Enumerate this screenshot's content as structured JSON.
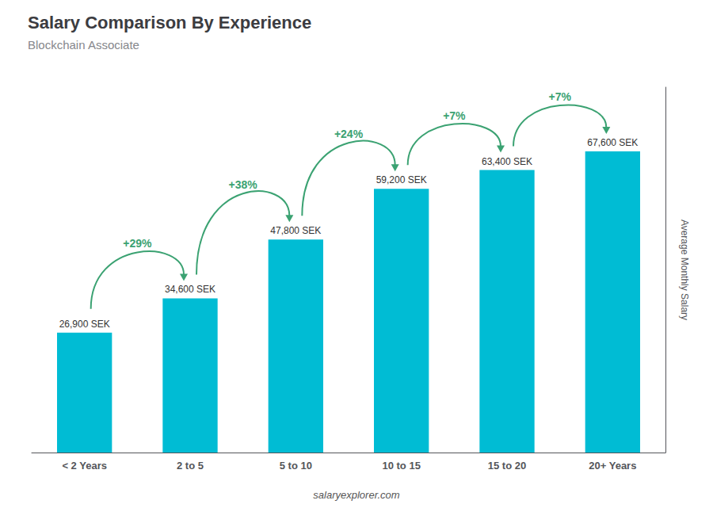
{
  "chart_data": {
    "type": "bar",
    "title": "Salary Comparison By Experience",
    "subtitle": "Blockchain Associate",
    "categories": [
      "< 2 Years",
      "2 to 5",
      "5 to 10",
      "10 to 15",
      "15 to 20",
      "20+ Years"
    ],
    "values": [
      26900,
      34600,
      47800,
      59200,
      63400,
      67600
    ],
    "value_labels": [
      "26,900 SEK",
      "34,600 SEK",
      "47,800 SEK",
      "59,200 SEK",
      "63,400 SEK",
      "67,600 SEK"
    ],
    "data_labels": true,
    "color": "#00bcd4",
    "y_label": "Average Monthly Salary",
    "annotations": [
      "+29%",
      "+38%",
      "+24%",
      "+7%",
      "+7%"
    ],
    "footer": "salaryexplorer.com",
    "ylim": [
      0,
      82000
    ],
    "grid": false,
    "tick_labels": "x"
  }
}
